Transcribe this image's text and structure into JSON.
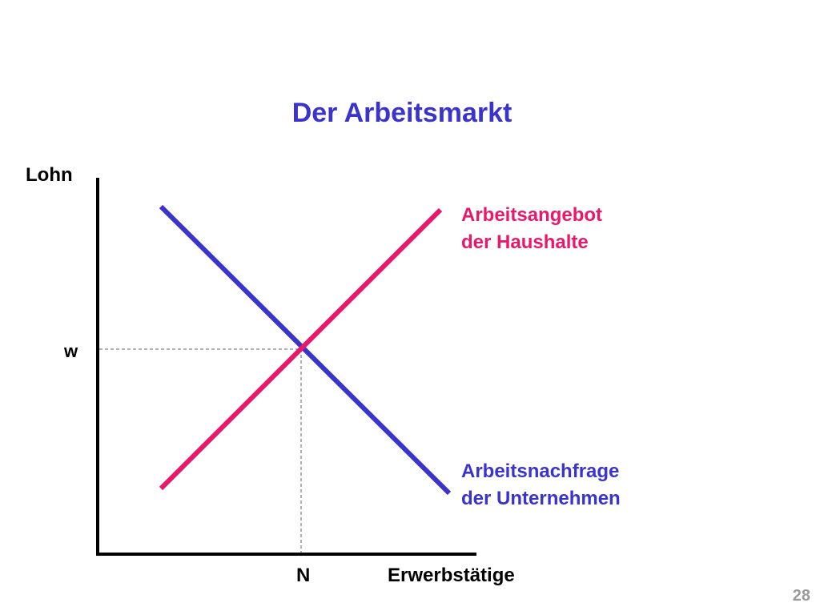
{
  "title": "Der Arbeitsmarkt",
  "y_axis_label": "Lohn",
  "x_axis_label": "Erwerbstätige",
  "equilibrium_wage_label": "w",
  "equilibrium_quantity_label": "N",
  "supply_curve": {
    "label_line1": "Arbeitsangebot",
    "label_line2": "der Haushalte",
    "color": "#e8186a"
  },
  "demand_curve": {
    "label_line1": "Arbeitsnachfrage",
    "label_line2": "der Unternehmen",
    "color": "#3a33cc"
  },
  "title_color": "#3a33cc",
  "axis_color": "#000000",
  "guide_color": "#999999",
  "page_number": "28"
}
